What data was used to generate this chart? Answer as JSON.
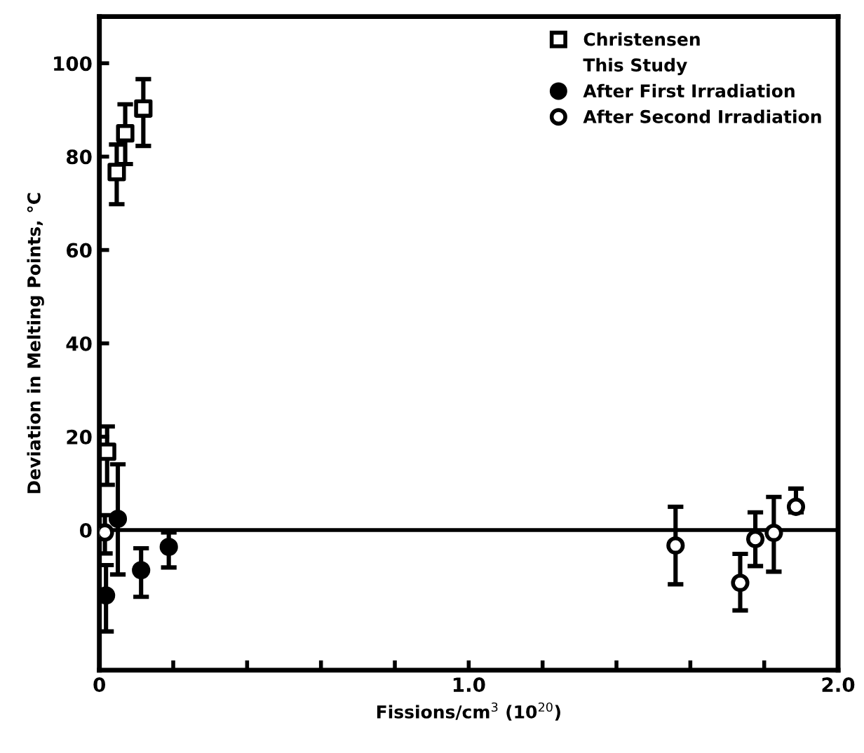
{
  "chart_data": {
    "type": "scatter",
    "xlabel": "Fissions/cm$^{3}$ (10$^{20}$)",
    "ylabel": "Deviation in Melting Points, °C",
    "xlim": [
      0,
      2.0
    ],
    "ylim": [
      -30,
      110
    ],
    "xticks": [
      0,
      {
        "value": 0.2,
        "label": null
      },
      {
        "value": 0.4,
        "label": null
      },
      {
        "value": 0.6,
        "label": null
      },
      {
        "value": 0.8,
        "label": null
      },
      {
        "value": 1.0,
        "label": "1.0"
      },
      {
        "value": 1.2,
        "label": null
      },
      {
        "value": 1.4,
        "label": null
      },
      {
        "value": 1.6,
        "label": null
      },
      {
        "value": 1.8,
        "label": null
      },
      {
        "value": 2.0,
        "label": "2.0"
      }
    ],
    "yticks": [
      0,
      20,
      40,
      60,
      80,
      100
    ],
    "grid": false,
    "legend": "top right",
    "annotations": [
      "This Study"
    ],
    "ref_lines": [
      {
        "axis": "y",
        "value": 0,
        "color": "#000000"
      }
    ],
    "series": [
      {
        "name": "Christensen",
        "color": "#000000",
        "marker": "square",
        "x": [
          0.021,
          0.047,
          0.07,
          0.119
        ],
        "values": [
          16.8,
          76.7,
          85,
          90.3
        ],
        "errors": [
          [
            9.7,
            22.2
          ],
          [
            69.8,
            82.6
          ],
          [
            78.4,
            91.2
          ],
          [
            82.3,
            96.6
          ]
        ]
      },
      {
        "name": "After First Irradiation",
        "color": "#000000",
        "marker": "circle",
        "x": [
          0.018,
          0.05,
          0.113,
          0.188
        ],
        "values": [
          -14,
          2.4,
          -8.6,
          -3.6
        ],
        "errors": [
          [
            -21.7,
            -7.5
          ],
          [
            -9.5,
            14.1
          ],
          [
            -14.3,
            -3.9
          ],
          [
            -8,
            -0.5
          ]
        ]
      },
      {
        "name": "After Second Irradiation",
        "color": "#000000",
        "marker": "circle",
        "x": [
          0.015,
          1.56,
          1.735,
          1.776,
          1.826,
          1.886
        ],
        "values": [
          -0.5,
          -3.3,
          -11.3,
          -1.9,
          -0.6,
          5
        ],
        "errors": [
          [
            -5,
            3.2
          ],
          [
            -11.6,
            5
          ],
          [
            -17.2,
            -5.1
          ],
          [
            -7.7,
            3.8
          ],
          [
            -8.9,
            7.1
          ],
          [
            3.8,
            8.9
          ]
        ]
      }
    ]
  }
}
